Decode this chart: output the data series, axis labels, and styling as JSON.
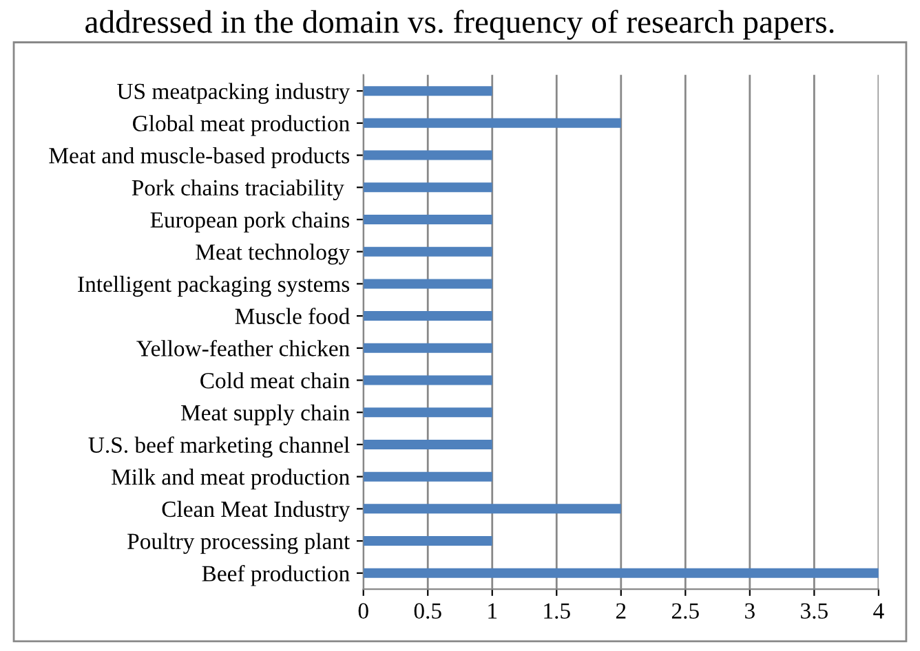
{
  "chart_data": {
    "type": "bar",
    "orientation": "horizontal",
    "title": "addressed in the domain vs. frequency of research papers.",
    "categories": [
      "US meatpacking industry",
      "Global meat production",
      "Meat and muscle-based products",
      "Pork chains traciability ",
      "European pork chains",
      "Meat technology",
      "Intelligent packaging systems",
      "Muscle food",
      "Yellow-feather chicken",
      "Cold meat chain",
      "Meat supply chain",
      "U.S. beef marketing channel",
      "Milk and meat production",
      "Clean Meat Industry",
      "Poultry processing plant",
      "Beef production"
    ],
    "values": [
      1,
      2,
      1,
      1,
      1,
      1,
      1,
      1,
      1,
      1,
      1,
      1,
      1,
      2,
      1,
      4
    ],
    "color": "#4f81bd",
    "xlim": [
      0,
      4
    ],
    "xticks": [
      0,
      0.5,
      1,
      1.5,
      2,
      2.5,
      3,
      3.5,
      4
    ],
    "grid": "x"
  }
}
